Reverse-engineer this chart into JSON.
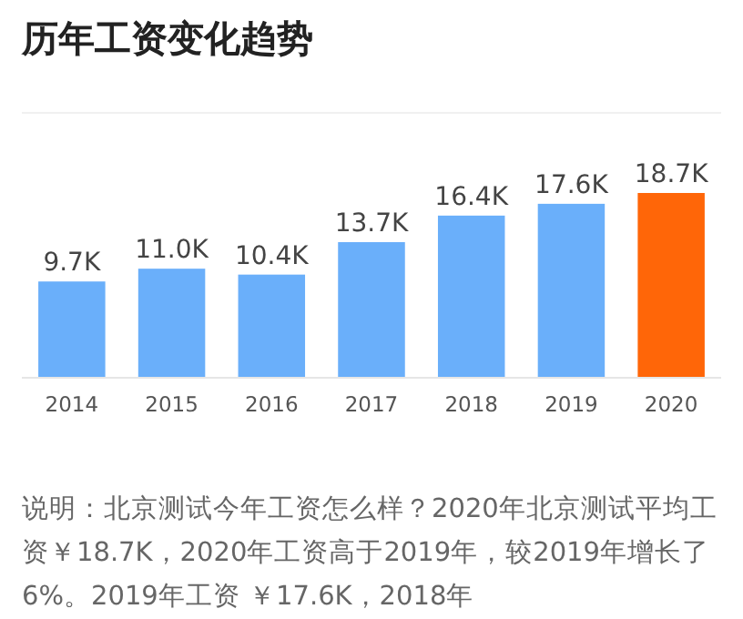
{
  "chart_data": {
    "type": "bar",
    "title": "历年工资变化趋势",
    "categories": [
      "2014",
      "2015",
      "2016",
      "2017",
      "2018",
      "2019",
      "2020"
    ],
    "values": [
      9.7,
      11.0,
      10.4,
      13.7,
      16.4,
      17.6,
      18.7
    ],
    "value_labels": [
      "9.7K",
      "11.0K",
      "10.4K",
      "13.7K",
      "16.4K",
      "17.6K",
      "18.7K"
    ],
    "colors": [
      "#6aaffa",
      "#6aaffa",
      "#6aaffa",
      "#6aaffa",
      "#6aaffa",
      "#6aaffa",
      "#ff6608"
    ],
    "annotations": [
      "说明：北京测试今年工资怎么样？2020年北京测试平均工资￥18.7K，2020年工资高于2019年，较2019年增长了6%。2019年工资 ￥17.6K，2018年"
    ]
  }
}
